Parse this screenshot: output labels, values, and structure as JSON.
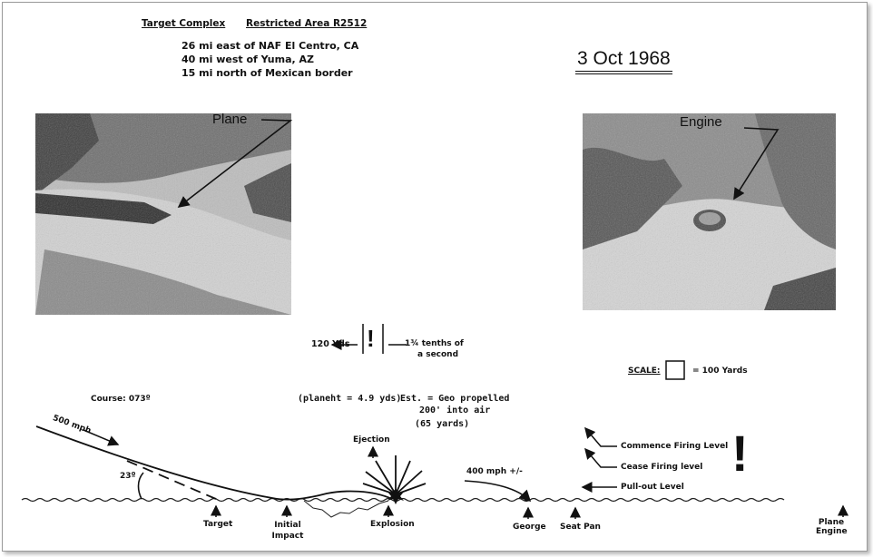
{
  "header": {
    "left_title": "Target Complex",
    "right_title": "Restricted Area R2512",
    "location_lines": [
      "26 mi east of NAF El Centro, CA",
      "40 mi west of Yuma, AZ",
      "15 mi north of Mexican border"
    ]
  },
  "date": "3 Oct 1968",
  "photos": {
    "plane_label": "Plane",
    "engine_label": "Engine"
  },
  "timing": {
    "distance": "120 Yds",
    "exclaim": "!",
    "duration_line1": "1¾ tenths of",
    "duration_line2": "a second"
  },
  "scale": {
    "label": "SCALE:",
    "value": "= 100 Yards"
  },
  "notes": {
    "course": "Course: 073º",
    "speed_in": "500 mph",
    "angle": "23º",
    "plane_height": "(planeht = 4.9 yds)",
    "estimate_line1": "Est. = Geo propelled",
    "estimate_line2": "200' into air",
    "estimate_line3": "(65 yards)",
    "speed_out": "400 mph +/-",
    "big_exclaim": "!"
  },
  "levels": [
    "Commence Firing Level",
    "Cease Firing level",
    "Pull-out Level"
  ],
  "ground_labels": {
    "ejection": "Ejection",
    "target": "Target",
    "initial_impact_1": "Initial",
    "initial_impact_2": "Impact",
    "explosion": "Explosion",
    "george": "George",
    "seat_pan": "Seat Pan",
    "plane_engine_1": "Plane",
    "plane_engine_2": "Engine"
  }
}
